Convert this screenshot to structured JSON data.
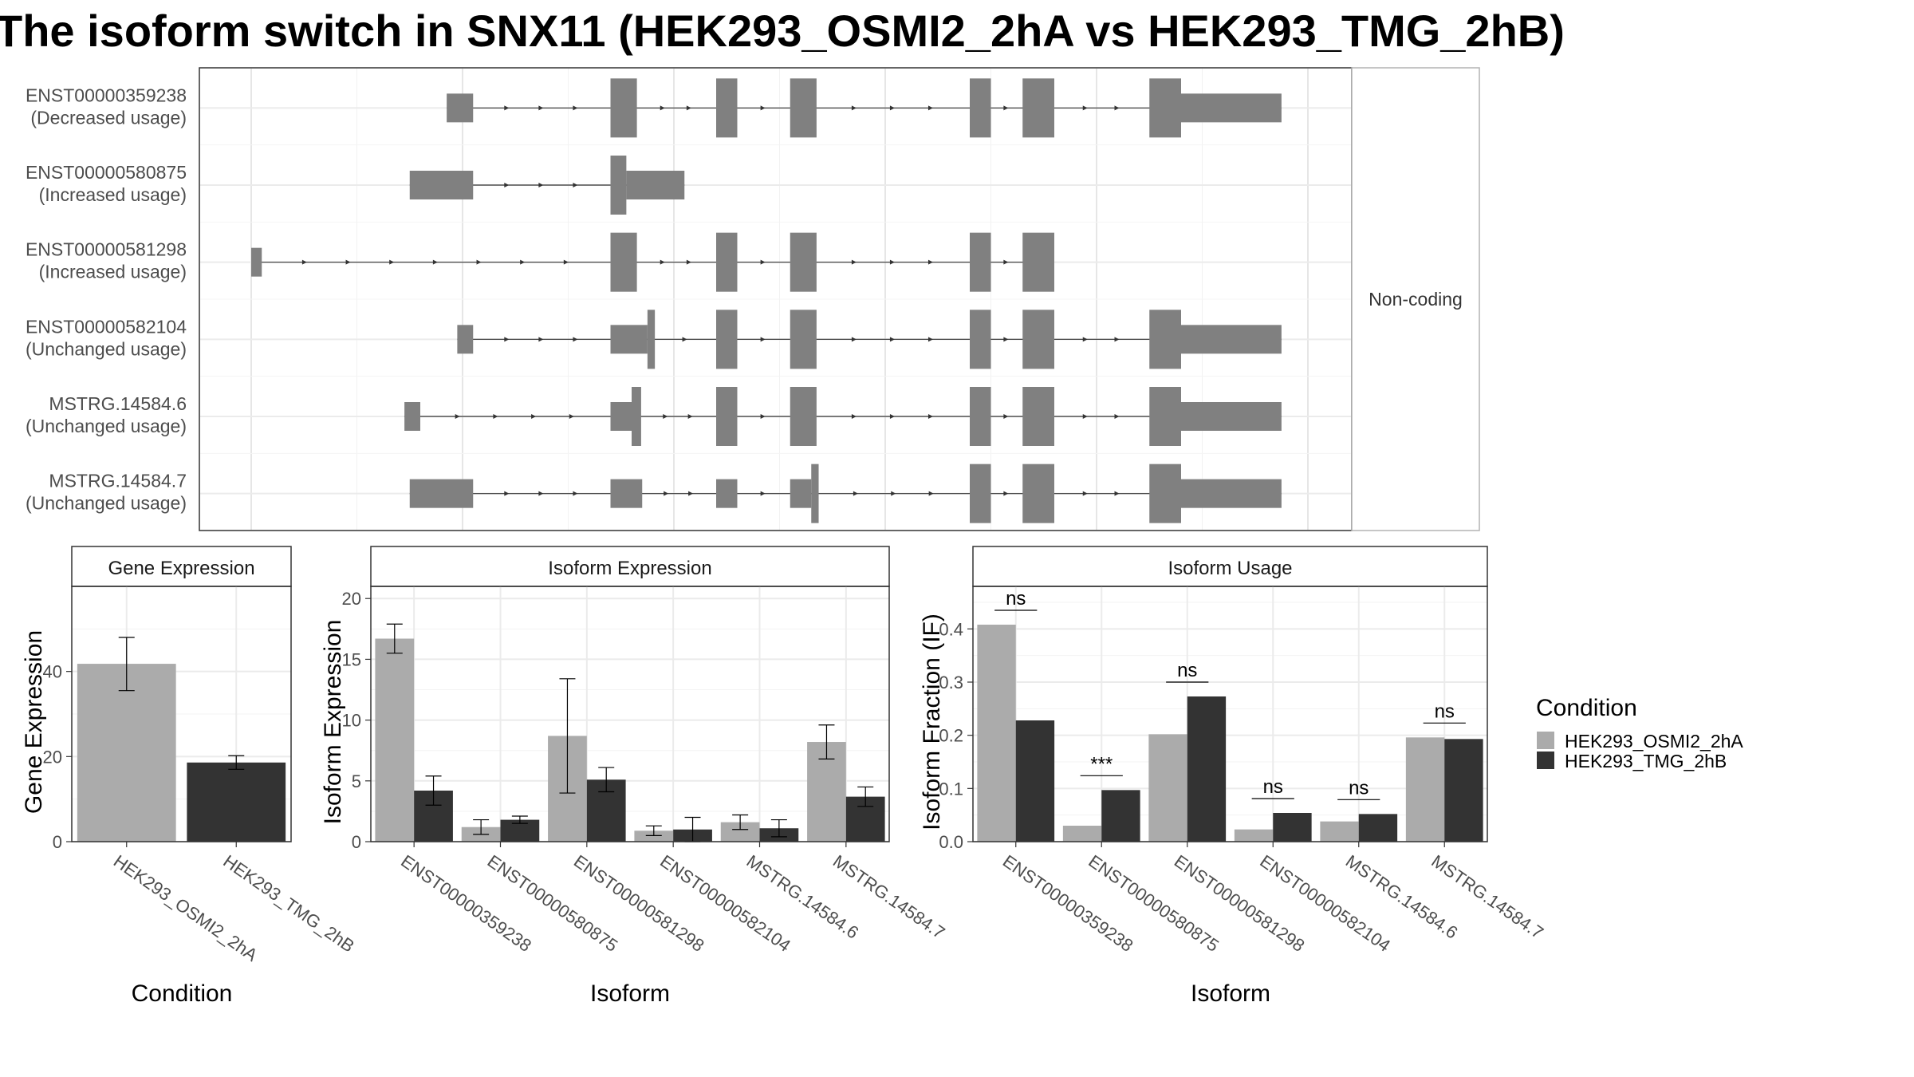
{
  "title": "The isoform switch in SNX11 (HEK293_OSMI2_2hA vs HEK293_TMG_2hB)",
  "colors": {
    "cond_a": "#ababab",
    "cond_b": "#333333",
    "exon": "#808080",
    "grid": "#ebebeb",
    "panel_border": "#333333"
  },
  "structure": {
    "side_label": "Non-coding",
    "genomic_range": [
      0,
      100
    ],
    "transcripts": [
      {
        "id": "ENST00000359238",
        "usage": "(Decreased usage)",
        "span": [
          18.5,
          97.5
        ],
        "exons": [
          [
            18.5,
            21
          ],
          [
            34,
            36.5,
            "t"
          ],
          [
            44,
            46,
            "t"
          ],
          [
            51,
            53.5,
            "t"
          ],
          [
            68,
            70,
            "t"
          ],
          [
            73,
            76,
            "t"
          ],
          [
            85,
            88,
            "t"
          ],
          [
            88,
            97.5
          ]
        ]
      },
      {
        "id": "ENST00000580875",
        "usage": "(Increased usage)",
        "span": [
          15,
          41
        ],
        "exons": [
          [
            15,
            21
          ],
          [
            34,
            35.5,
            "t"
          ],
          [
            35.5,
            41
          ]
        ]
      },
      {
        "id": "ENST00000581298",
        "usage": "(Increased usage)",
        "span": [
          0,
          74.5
        ],
        "exons": [
          [
            0,
            1
          ],
          [
            34,
            36.5,
            "t"
          ],
          [
            44,
            46,
            "t"
          ],
          [
            51,
            53.5,
            "t"
          ],
          [
            68,
            70,
            "t"
          ],
          [
            73,
            76,
            "t"
          ],
          [
            76,
            74.5
          ]
        ]
      },
      {
        "id": "ENST00000582104",
        "usage": "(Unchanged usage)",
        "span": [
          19.5,
          97.5
        ],
        "exons": [
          [
            19.5,
            21
          ],
          [
            34,
            37.5
          ],
          [
            37.5,
            38.2,
            "t"
          ],
          [
            44,
            46,
            "t"
          ],
          [
            51,
            53.5,
            "t"
          ],
          [
            68,
            70,
            "t"
          ],
          [
            73,
            76,
            "t"
          ],
          [
            85,
            88,
            "t"
          ],
          [
            88,
            97.5
          ]
        ]
      },
      {
        "id": "MSTRG.14584.6",
        "usage": "(Unchanged usage)",
        "span": [
          14.5,
          97.5
        ],
        "exons": [
          [
            14.5,
            16
          ],
          [
            34,
            36
          ],
          [
            36,
            36.9,
            "t"
          ],
          [
            44,
            46,
            "t"
          ],
          [
            51,
            53.5,
            "t"
          ],
          [
            68,
            70,
            "t"
          ],
          [
            73,
            76,
            "t"
          ],
          [
            85,
            88,
            "t"
          ],
          [
            88,
            97.5
          ]
        ]
      },
      {
        "id": "MSTRG.14584.7",
        "usage": "(Unchanged usage)",
        "span": [
          15,
          97.5
        ],
        "exons": [
          [
            15,
            21
          ],
          [
            34,
            37
          ],
          [
            44,
            46
          ],
          [
            51,
            53
          ],
          [
            53,
            53.7,
            "t"
          ],
          [
            68,
            70,
            "t"
          ],
          [
            73,
            76,
            "t"
          ],
          [
            85,
            88,
            "t"
          ],
          [
            88,
            97.5
          ]
        ]
      }
    ]
  },
  "legend": {
    "title": "Condition",
    "items": [
      "HEK293_OSMI2_2hA",
      "HEK293_TMG_2hB"
    ]
  },
  "chart_data": [
    {
      "type": "bar",
      "strip": "Gene Expression",
      "xlabel": "Condition",
      "ylabel": "Gene Expression",
      "ylim": [
        0,
        60
      ],
      "yticks": [
        0,
        20,
        40
      ],
      "categories": [
        "HEK293_OSMI2_2hA",
        "HEK293_TMG_2hB"
      ],
      "series": [
        {
          "name": "HEK293_OSMI2_2hA",
          "values": [
            41.8,
            null
          ],
          "err_low": [
            35.5,
            null
          ],
          "err_high": [
            48.0,
            null
          ]
        },
        {
          "name": "HEK293_TMG_2hB",
          "values": [
            null,
            18.6
          ],
          "err_low": [
            null,
            17.0
          ],
          "err_high": [
            null,
            20.2
          ]
        }
      ]
    },
    {
      "type": "bar",
      "strip": "Isoform Expression",
      "xlabel": "Isoform",
      "ylabel": "Isoform Expression",
      "ylim": [
        0,
        21
      ],
      "yticks": [
        0,
        5,
        10,
        15,
        20
      ],
      "categories": [
        "ENST00000359238",
        "ENST00000580875",
        "ENST00000581298",
        "ENST00000582104",
        "MSTRG.14584.6",
        "MSTRG.14584.7"
      ],
      "series": [
        {
          "name": "HEK293_OSMI2_2hA",
          "values": [
            16.7,
            1.2,
            8.7,
            0.9,
            1.6,
            8.2
          ],
          "err_low": [
            15.5,
            0.6,
            4.0,
            0.5,
            1.0,
            6.8
          ],
          "err_high": [
            17.9,
            1.8,
            13.4,
            1.3,
            2.2,
            9.6
          ]
        },
        {
          "name": "HEK293_TMG_2hB",
          "values": [
            4.2,
            1.8,
            5.1,
            1.0,
            1.1,
            3.7
          ],
          "err_low": [
            3.0,
            1.5,
            4.1,
            0.0,
            0.4,
            2.9
          ],
          "err_high": [
            5.4,
            2.1,
            6.1,
            2.0,
            1.8,
            4.5
          ]
        }
      ]
    },
    {
      "type": "bar",
      "strip": "Isoform Usage",
      "xlabel": "Isoform",
      "ylabel": "Isoform Fraction (IF)",
      "ylim": [
        0,
        0.48
      ],
      "yticks": [
        0.0,
        0.1,
        0.2,
        0.3,
        0.4
      ],
      "ytick_labels": [
        "0.0",
        "0.1",
        "0.2",
        "0.3",
        "0.4"
      ],
      "categories": [
        "ENST00000359238",
        "ENST00000580875",
        "ENST00000581298",
        "ENST00000582104",
        "MSTRG.14584.6",
        "MSTRG.14584.7"
      ],
      "significance": [
        "ns",
        "***",
        "ns",
        "ns",
        "ns",
        "ns"
      ],
      "series": [
        {
          "name": "HEK293_OSMI2_2hA",
          "values": [
            0.408,
            0.03,
            0.202,
            0.023,
            0.038,
            0.196
          ]
        },
        {
          "name": "HEK293_TMG_2hB",
          "values": [
            0.228,
            0.097,
            0.273,
            0.054,
            0.052,
            0.193
          ]
        }
      ]
    }
  ]
}
